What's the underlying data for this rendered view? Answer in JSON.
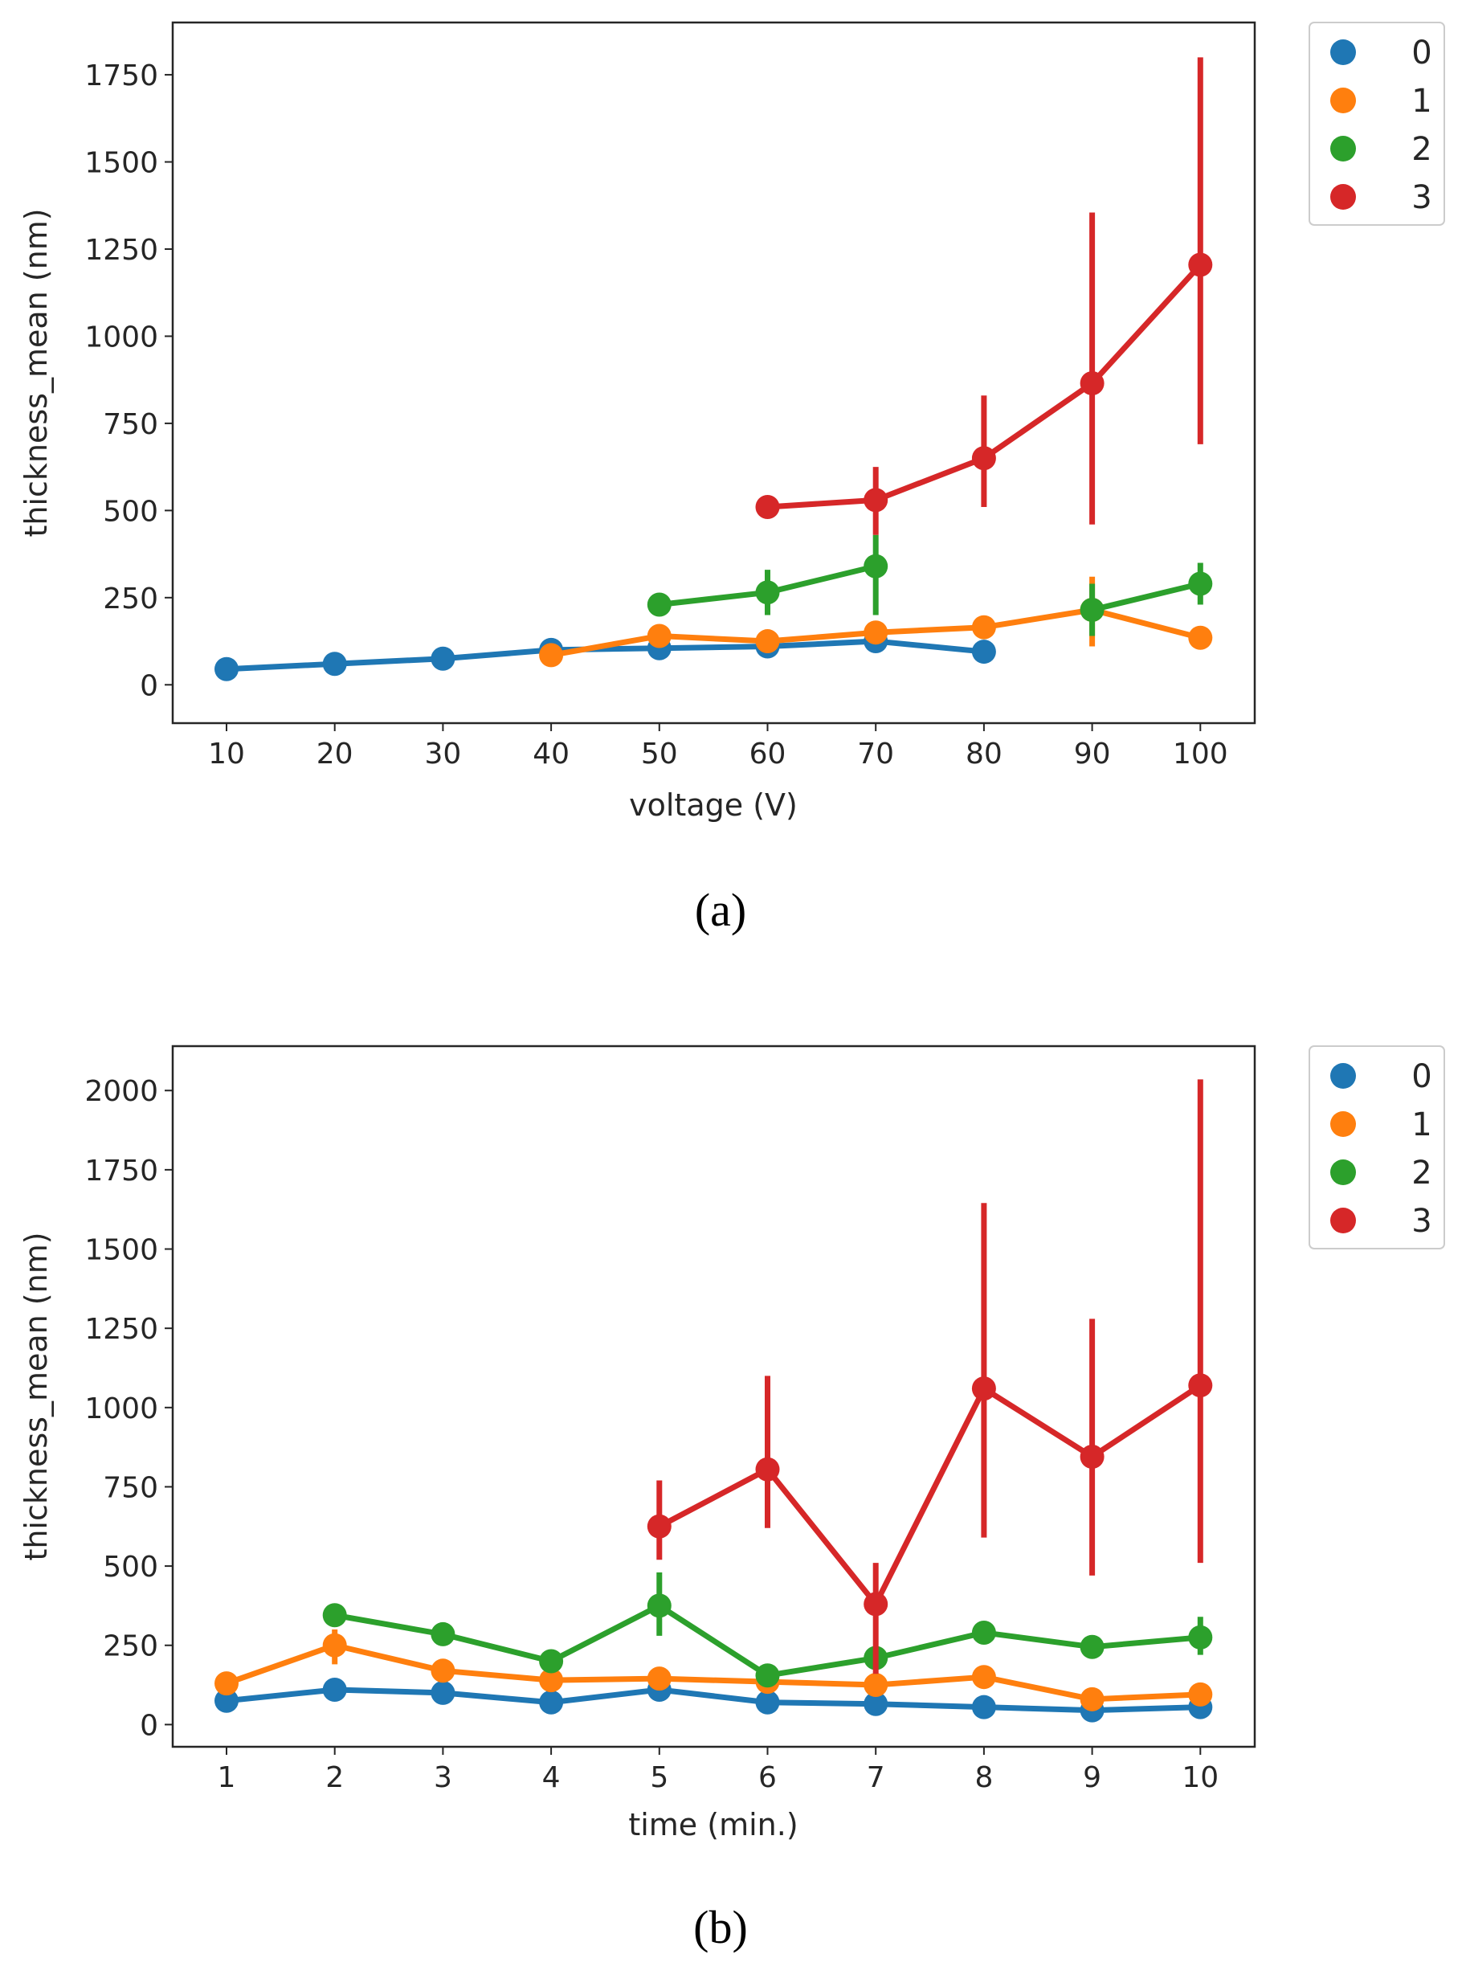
{
  "chart_data": [
    {
      "type": "line",
      "caption": "(a)",
      "xlabel": "voltage (V)",
      "ylabel": "thickness_mean (nm)",
      "categories": [
        "10",
        "20",
        "30",
        "40",
        "50",
        "60",
        "70",
        "80",
        "90",
        "100"
      ],
      "ylim": [
        -110,
        1900
      ],
      "yticks": [
        "0",
        "250",
        "500",
        "750",
        "1000",
        "1250",
        "1500",
        "1750"
      ],
      "legend_position": "outside-top-right",
      "series": [
        {
          "name": "0",
          "color": "#1f77b4",
          "values": [
            45,
            60,
            75,
            100,
            105,
            110,
            125,
            95,
            null,
            null
          ],
          "err_low": [
            null,
            null,
            null,
            null,
            null,
            null,
            null,
            null,
            null,
            null
          ],
          "err_high": [
            null,
            null,
            null,
            null,
            null,
            null,
            null,
            null,
            null,
            null
          ]
        },
        {
          "name": "1",
          "color": "#ff7f0e",
          "values": [
            null,
            null,
            null,
            85,
            140,
            125,
            150,
            165,
            215,
            135
          ],
          "err_low": [
            null,
            null,
            null,
            null,
            null,
            null,
            null,
            null,
            110,
            null
          ],
          "err_high": [
            null,
            null,
            null,
            null,
            null,
            null,
            null,
            null,
            310,
            null
          ]
        },
        {
          "name": "2",
          "color": "#2ca02c",
          "values": [
            null,
            null,
            null,
            null,
            230,
            265,
            340,
            null,
            215,
            290
          ],
          "err_low": [
            null,
            null,
            null,
            null,
            null,
            200,
            200,
            null,
            140,
            230
          ],
          "err_high": [
            null,
            null,
            null,
            null,
            null,
            330,
            430,
            null,
            290,
            350
          ]
        },
        {
          "name": "3",
          "color": "#d62728",
          "values": [
            null,
            null,
            null,
            null,
            null,
            510,
            530,
            650,
            865,
            1205
          ],
          "err_low": [
            null,
            null,
            null,
            null,
            null,
            null,
            430,
            510,
            460,
            690
          ],
          "err_high": [
            null,
            null,
            null,
            null,
            null,
            null,
            625,
            830,
            1355,
            1800
          ]
        }
      ]
    },
    {
      "type": "line",
      "caption": "(b)",
      "xlabel": "time (min.)",
      "ylabel": "thickness_mean (nm)",
      "categories": [
        "1",
        "2",
        "3",
        "4",
        "5",
        "6",
        "7",
        "8",
        "9",
        "10"
      ],
      "ylim": [
        -70,
        2140
      ],
      "yticks": [
        "0",
        "250",
        "500",
        "750",
        "1000",
        "1250",
        "1500",
        "1750",
        "2000"
      ],
      "legend_position": "outside-top-right",
      "series": [
        {
          "name": "0",
          "color": "#1f77b4",
          "values": [
            75,
            110,
            100,
            70,
            110,
            70,
            65,
            55,
            45,
            55
          ],
          "err_low": [
            null,
            null,
            null,
            null,
            null,
            null,
            null,
            null,
            null,
            null
          ],
          "err_high": [
            null,
            null,
            null,
            null,
            null,
            null,
            null,
            null,
            null,
            null
          ]
        },
        {
          "name": "1",
          "color": "#ff7f0e",
          "values": [
            130,
            250,
            170,
            140,
            145,
            135,
            125,
            150,
            80,
            95
          ],
          "err_low": [
            null,
            190,
            null,
            null,
            null,
            null,
            null,
            null,
            null,
            null
          ],
          "err_high": [
            null,
            300,
            null,
            null,
            null,
            null,
            null,
            null,
            null,
            null
          ]
        },
        {
          "name": "2",
          "color": "#2ca02c",
          "values": [
            null,
            345,
            285,
            200,
            375,
            155,
            210,
            290,
            245,
            275
          ],
          "err_low": [
            null,
            null,
            null,
            170,
            280,
            null,
            null,
            null,
            null,
            220
          ],
          "err_high": [
            null,
            null,
            null,
            235,
            480,
            null,
            null,
            null,
            null,
            340
          ]
        },
        {
          "name": "3",
          "color": "#d62728",
          "values": [
            null,
            null,
            null,
            null,
            625,
            805,
            380,
            1060,
            845,
            1070
          ],
          "err_low": [
            null,
            null,
            null,
            null,
            520,
            620,
            160,
            590,
            470,
            510
          ],
          "err_high": [
            null,
            null,
            null,
            null,
            770,
            1100,
            510,
            1645,
            1280,
            2035
          ]
        }
      ]
    }
  ]
}
